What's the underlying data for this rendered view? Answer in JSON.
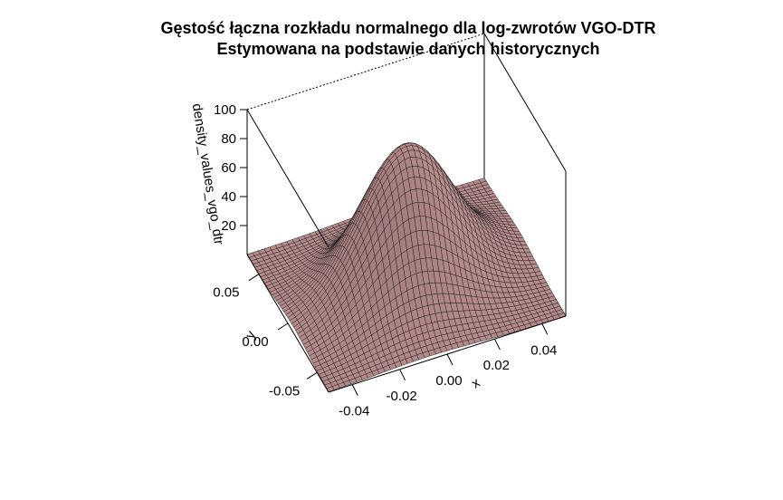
{
  "chart_data": {
    "type": "surface3d",
    "title": "Gęstość łączna rozkładu normalnego dla log-zwrotów VGO-DTR",
    "subtitle": "Estymowana na podstawie danych historycznych",
    "xlabel": "x",
    "ylabel": "y",
    "zlabel": "density_values_vgo_dtr",
    "x_ticks": [
      "-0.04",
      "-0.02",
      "0.00",
      "0.02",
      "0.04"
    ],
    "y_ticks": [
      "-0.05",
      "0.00",
      "0.05"
    ],
    "z_ticks": [
      "20",
      "40",
      "60",
      "80",
      "100"
    ],
    "xlim": [
      -0.05,
      0.05
    ],
    "ylim": [
      -0.07,
      0.07
    ],
    "zlim": [
      0,
      100
    ],
    "peak_density": 96,
    "mean_x": 0.0,
    "mean_y": 0.0,
    "surface_color": "#b58a8a",
    "box": true
  }
}
